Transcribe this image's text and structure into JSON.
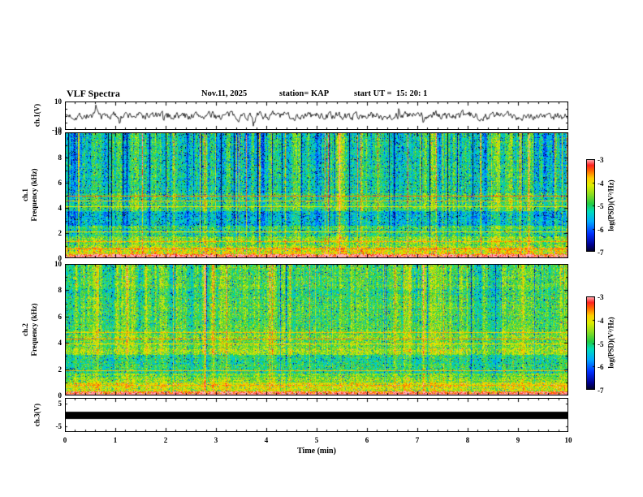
{
  "header": {
    "title": "VLF Spectra",
    "date": "Nov.11, 2025",
    "station": "station= KAP",
    "start_ut": "start UT =  15: 20: 1"
  },
  "axes": {
    "x_label": "Time (min)",
    "x_ticks": [
      "0",
      "1",
      "2",
      "3",
      "4",
      "5",
      "6",
      "7",
      "8",
      "9",
      "10"
    ],
    "x_range_min": [
      0,
      10
    ]
  },
  "colorbar": {
    "label": "log(PSD)(V²/Hz)",
    "ticks": [
      "-3",
      "-4",
      "-5",
      "-6",
      "-7"
    ],
    "min": -7,
    "max": -3,
    "gradient_stops": [
      {
        "t": 0.0,
        "c": "#000018"
      },
      {
        "t": 0.08,
        "c": "#000090"
      },
      {
        "t": 0.2,
        "c": "#0030ff"
      },
      {
        "t": 0.33,
        "c": "#00aaff"
      },
      {
        "t": 0.44,
        "c": "#00ddbb"
      },
      {
        "t": 0.52,
        "c": "#22cc44"
      },
      {
        "t": 0.62,
        "c": "#88dd22"
      },
      {
        "t": 0.72,
        "c": "#ddee00"
      },
      {
        "t": 0.8,
        "c": "#ffcc00"
      },
      {
        "t": 0.88,
        "c": "#ff6600"
      },
      {
        "t": 0.94,
        "c": "#ff2222"
      },
      {
        "t": 1.0,
        "c": "#ffb0b8"
      }
    ]
  },
  "chart_data": [
    {
      "id": "ch1-waveform",
      "type": "line",
      "ylabel": "ch.1(V)",
      "ylim": [
        -10,
        10
      ],
      "yticks": [
        10,
        -10
      ],
      "x_range_min": [
        0,
        10
      ],
      "line_color": "#000000",
      "signal": "broadband noise ±4 V with intermittent spikes to ±8 V",
      "gen": {
        "seed": 7,
        "amplitude_v": 3.2,
        "spike_prob": 0.012,
        "spike_extra_v": 5
      }
    },
    {
      "id": "ch1-spectrogram",
      "type": "heatmap",
      "ylabel_lines": [
        "ch.1",
        "Frequency (kHz)"
      ],
      "ylim_khz": [
        0,
        10
      ],
      "yticks": [
        0,
        2,
        4,
        6,
        8,
        10
      ],
      "zlabel": "log(PSD)(V²/Hz)",
      "zlim": [
        -7,
        -3
      ],
      "bands": [
        {
          "f0": 0.0,
          "f1": 0.35,
          "v": -3.2
        },
        {
          "f0": 0.35,
          "f1": 0.9,
          "v": -4.0
        },
        {
          "f0": 0.9,
          "f1": 1.8,
          "v": -4.5
        },
        {
          "f0": 1.8,
          "f1": 2.6,
          "v": -4.9
        },
        {
          "f0": 2.6,
          "f1": 3.8,
          "v": -5.4
        },
        {
          "f0": 3.8,
          "f1": 5.2,
          "v": -4.8
        },
        {
          "f0": 5.2,
          "f1": 10.01,
          "v": -5.1
        }
      ],
      "red_lines": [
        {
          "f": 4.95,
          "v": -3.5
        },
        {
          "f": 4.55,
          "v": -3.8
        },
        {
          "f": 4.15,
          "v": -4.0
        },
        {
          "f": 2.1,
          "v": -3.9
        },
        {
          "f": 1.35,
          "v": -3.7
        },
        {
          "f": 0.75,
          "v": -3.6
        }
      ],
      "texture": {
        "seed": 101,
        "impulse_prob": 0.09,
        "impulse_bias": 0,
        "streak_smooth": 0.72,
        "streak_gain": 1.0,
        "base_noise": 0.5,
        "speckle_dark_prob": 0.09,
        "speckle_bright_prob": 0.02
      }
    },
    {
      "id": "ch2-spectrogram",
      "type": "heatmap",
      "ylabel_lines": [
        "ch.2",
        "Frequency (kHz)"
      ],
      "ylim_khz": [
        0,
        10
      ],
      "yticks": [
        0,
        2,
        4,
        6,
        8,
        10
      ],
      "zlabel": "log(PSD)(V²/Hz)",
      "zlim": [
        -7,
        -3
      ],
      "bands": [
        {
          "f0": 0.0,
          "f1": 0.35,
          "v": -3.2
        },
        {
          "f0": 0.35,
          "f1": 1.0,
          "v": -4.1
        },
        {
          "f0": 1.0,
          "f1": 1.7,
          "v": -4.5
        },
        {
          "f0": 1.7,
          "f1": 3.1,
          "v": -5.0
        },
        {
          "f0": 3.1,
          "f1": 5.0,
          "v": -4.5
        },
        {
          "f0": 5.0,
          "f1": 10.01,
          "v": -4.75
        }
      ],
      "red_lines": [
        {
          "f": 4.8,
          "v": -3.8
        },
        {
          "f": 4.35,
          "v": -3.6
        },
        {
          "f": 3.95,
          "v": -3.9
        },
        {
          "f": 1.9,
          "v": -3.8
        },
        {
          "f": 0.8,
          "v": -3.7
        }
      ],
      "texture": {
        "seed": 202,
        "impulse_prob": 0.05,
        "impulse_bias": 0.1,
        "streak_smooth": 0.7,
        "streak_gain": 0.75,
        "base_noise": 0.5,
        "speckle_dark_prob": 0.07,
        "speckle_bright_prob": 0.03
      }
    },
    {
      "id": "ch3-waveform",
      "type": "line",
      "ylabel": "ch.3(V)",
      "ylim": [
        -5,
        5
      ],
      "yticks": [
        5,
        -5
      ],
      "x_range_min": [
        0,
        10
      ],
      "line_color": "#000000",
      "signal": "saturated/clipped — solid black band near 0 V across full record",
      "bar_center_v": 0,
      "bar_halfheight_v": 1.6
    }
  ]
}
